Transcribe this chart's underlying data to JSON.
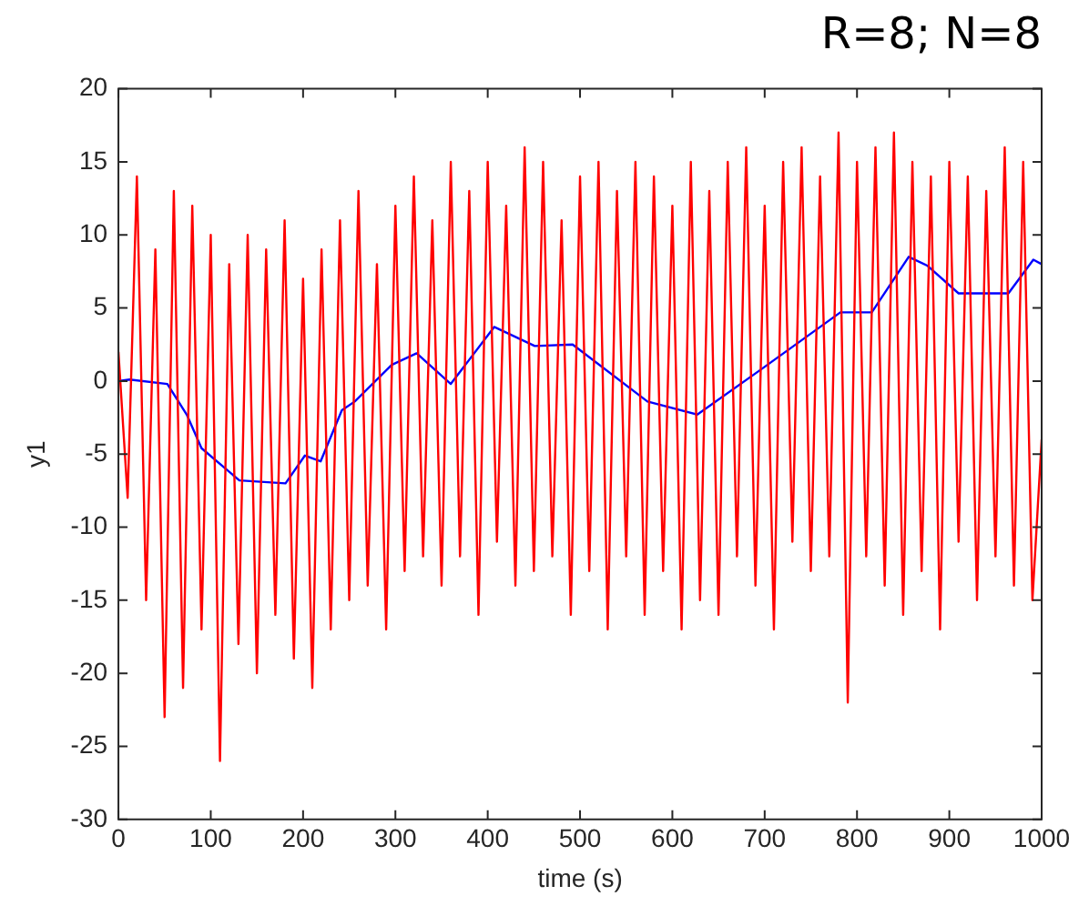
{
  "chart_data": {
    "type": "line",
    "title": "R=8; N=8",
    "xlabel": "time (s)",
    "ylabel": "y1",
    "xlim": [
      0,
      1000
    ],
    "xticks": [
      0,
      100,
      200,
      300,
      400,
      500,
      600,
      700,
      800,
      900,
      1000
    ],
    "ylim": [
      -30,
      20
    ],
    "yticks": [
      -30,
      -25,
      -20,
      -15,
      -10,
      -5,
      0,
      5,
      10,
      15,
      20
    ],
    "grid": false,
    "legend": false,
    "marker": "none",
    "line_style": "solid",
    "series": [
      {
        "color": "#ff0000",
        "x": [
          0,
          10,
          20,
          30,
          40,
          50,
          60,
          70,
          80,
          90,
          100,
          110,
          120,
          130,
          140,
          150,
          160,
          170,
          180,
          190,
          200,
          210,
          220,
          230,
          240,
          250,
          260,
          270,
          280,
          290,
          300,
          310,
          320,
          330,
          340,
          350,
          360,
          370,
          380,
          390,
          400,
          410,
          420,
          430,
          440,
          450,
          460,
          470,
          480,
          490,
          500,
          510,
          520,
          530,
          540,
          550,
          560,
          570,
          580,
          590,
          600,
          610,
          620,
          630,
          640,
          650,
          660,
          670,
          680,
          690,
          700,
          710,
          720,
          730,
          740,
          750,
          760,
          770,
          780,
          790,
          800,
          810,
          820,
          830,
          840,
          850,
          860,
          870,
          880,
          890,
          900,
          910,
          920,
          930,
          940,
          950,
          960,
          970,
          980,
          990,
          1000
        ],
        "values": [
          2,
          -8,
          14,
          -15,
          9,
          -23,
          13,
          -21,
          12,
          -17,
          10,
          -26,
          8,
          -18,
          10,
          -20,
          9,
          -16,
          11,
          -19,
          7,
          -21,
          9,
          -17,
          11,
          -15,
          13,
          -14,
          8,
          -17,
          12,
          -13,
          14,
          -12,
          11,
          -14,
          15,
          -12,
          13,
          -16,
          15,
          -11,
          12,
          -14,
          16,
          -13,
          15,
          -12,
          11,
          -16,
          14,
          -13,
          15,
          -17,
          13,
          -12,
          15,
          -16,
          14,
          -13,
          12,
          -17,
          15,
          -15,
          13,
          -16,
          15,
          -12,
          16,
          -14,
          12,
          -17,
          15,
          -11,
          16,
          -13,
          14,
          -12,
          17,
          -22,
          15,
          -12,
          16,
          -14,
          17,
          -16,
          15,
          -13,
          14,
          -17,
          15,
          -11,
          14,
          -15,
          13,
          -12,
          16,
          -14,
          15,
          -15,
          -4
        ]
      },
      {
        "color": "#0000ff",
        "x": [
          0,
          12,
          53,
          74,
          90,
          131,
          181,
          202,
          219,
          242,
          256,
          296,
          323,
          360,
          407,
          451,
          492,
          573,
          627,
          694,
          782,
          816,
          856,
          876,
          910,
          964,
          991,
          1000
        ],
        "values": [
          0,
          0.1,
          -0.2,
          -2.3,
          -4.6,
          -6.8,
          -7,
          -5.1,
          -5.5,
          -2,
          -1.4,
          1.1,
          1.9,
          -0.2,
          3.7,
          2.4,
          2.5,
          -1.4,
          -2.3,
          0.7,
          4.7,
          4.7,
          8.5,
          7.9,
          6,
          6,
          8.3,
          8
        ]
      }
    ]
  }
}
